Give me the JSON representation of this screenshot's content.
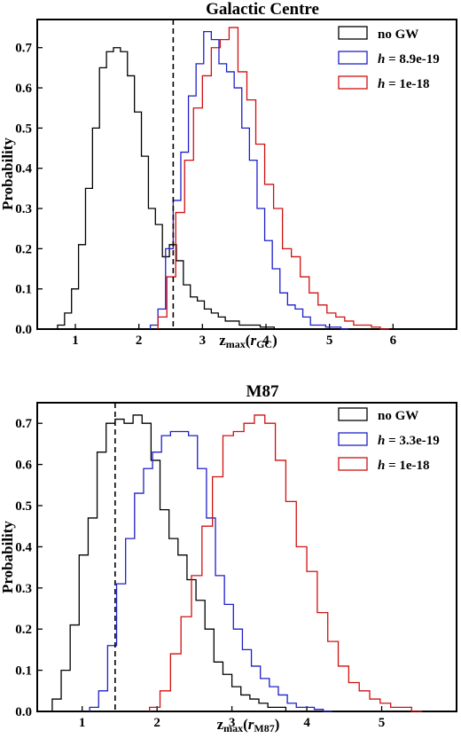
{
  "chart_data": [
    {
      "type": "histogram-step",
      "title": "Galactic Centre",
      "ylabel": "Probability",
      "xlabel_main": "z",
      "xlabel_sub": "max",
      "xlabel_arg": "r",
      "xlabel_arg_sub": "GC",
      "xlim": [
        0.4,
        7.0
      ],
      "ylim": [
        0,
        0.77
      ],
      "xticks": [
        1,
        2,
        3,
        4,
        5,
        6
      ],
      "yticks": [
        0.0,
        0.1,
        0.2,
        0.3,
        0.4,
        0.5,
        0.6,
        0.7
      ],
      "ytick_labels": [
        "0.0",
        "0.1",
        "0.2",
        "0.3",
        "0.4",
        "0.5",
        "0.6",
        "0.7"
      ],
      "vline": 2.54,
      "legend": [
        {
          "label": "no GW",
          "color": "#000000"
        },
        {
          "label_prefix": "h",
          "label_value": " = 8.9e-19",
          "color": "#1f1fc8"
        },
        {
          "label_prefix": "h",
          "label_value": " = 1e-18",
          "color": "#d01010"
        }
      ],
      "series": [
        {
          "color": "#000000",
          "edges": [
            0.72,
            0.83,
            0.94,
            1.05,
            1.16,
            1.27,
            1.38,
            1.49,
            1.6,
            1.71,
            1.82,
            1.93,
            2.04,
            2.15,
            2.26,
            2.37,
            2.48,
            2.59,
            2.7,
            2.81,
            2.92,
            3.03,
            3.14,
            3.25,
            3.36,
            3.47,
            3.58,
            3.69,
            3.8,
            3.91,
            4.02,
            4.13,
            4.24
          ],
          "values": [
            0.01,
            0.04,
            0.1,
            0.21,
            0.35,
            0.5,
            0.65,
            0.69,
            0.7,
            0.69,
            0.63,
            0.54,
            0.43,
            0.3,
            0.26,
            0.18,
            0.21,
            0.17,
            0.11,
            0.08,
            0.07,
            0.05,
            0.04,
            0.03,
            0.02,
            0.02,
            0.01,
            0.01,
            0.01,
            0.005,
            0.005,
            0.0
          ]
        },
        {
          "color": "#1f1fc8",
          "edges": [
            2.18,
            2.3,
            2.42,
            2.54,
            2.66,
            2.78,
            2.9,
            3.02,
            3.14,
            3.26,
            3.38,
            3.5,
            3.62,
            3.74,
            3.86,
            3.98,
            4.1,
            4.22,
            4.34,
            4.46,
            4.58,
            4.7,
            4.82,
            4.94,
            5.06,
            5.18,
            5.3
          ],
          "values": [
            0.01,
            0.05,
            0.2,
            0.32,
            0.44,
            0.58,
            0.66,
            0.74,
            0.72,
            0.66,
            0.64,
            0.6,
            0.5,
            0.42,
            0.3,
            0.22,
            0.15,
            0.09,
            0.06,
            0.05,
            0.03,
            0.01,
            0.01,
            0.005,
            0.005,
            0.0
          ]
        },
        {
          "color": "#d01010",
          "edges": [
            2.3,
            2.44,
            2.58,
            2.72,
            2.86,
            3.0,
            3.14,
            3.28,
            3.42,
            3.56,
            3.7,
            3.84,
            3.98,
            4.12,
            4.26,
            4.4,
            4.54,
            4.68,
            4.82,
            4.96,
            5.1,
            5.24,
            5.38,
            5.52,
            5.66,
            5.8,
            5.94
          ],
          "values": [
            0.03,
            0.13,
            0.29,
            0.42,
            0.55,
            0.63,
            0.7,
            0.72,
            0.75,
            0.64,
            0.57,
            0.46,
            0.36,
            0.3,
            0.2,
            0.18,
            0.13,
            0.09,
            0.06,
            0.04,
            0.03,
            0.02,
            0.01,
            0.01,
            0.005,
            0.0
          ]
        }
      ]
    },
    {
      "type": "histogram-step",
      "title": "M87",
      "ylabel": "Probability",
      "xlabel_main": "z",
      "xlabel_sub": "max",
      "xlabel_arg": "r",
      "xlabel_arg_sub": "M87",
      "xlim": [
        0.4,
        6.0
      ],
      "ylim": [
        0,
        0.75
      ],
      "xticks": [
        1,
        2,
        3,
        4,
        5
      ],
      "yticks": [
        0.0,
        0.1,
        0.2,
        0.3,
        0.4,
        0.5,
        0.6,
        0.7
      ],
      "ytick_labels": [
        "0.0",
        "0.1",
        "0.2",
        "0.3",
        "0.4",
        "0.5",
        "0.6",
        "0.7"
      ],
      "vline": 1.44,
      "legend": [
        {
          "label": "no GW",
          "color": "#000000"
        },
        {
          "label_prefix": "h",
          "label_value": " = 3.3e-19",
          "color": "#1f1fc8"
        },
        {
          "label_prefix": "h",
          "label_value": " = 1e-18",
          "color": "#d01010"
        }
      ],
      "series": [
        {
          "color": "#000000",
          "edges": [
            0.6,
            0.72,
            0.84,
            0.96,
            1.08,
            1.2,
            1.32,
            1.44,
            1.56,
            1.68,
            1.8,
            1.92,
            2.04,
            2.16,
            2.28,
            2.4,
            2.52,
            2.64,
            2.76,
            2.88,
            3.0,
            3.12,
            3.24,
            3.36,
            3.48,
            3.6,
            3.72,
            3.84
          ],
          "values": [
            0.03,
            0.1,
            0.21,
            0.38,
            0.47,
            0.63,
            0.7,
            0.71,
            0.7,
            0.72,
            0.7,
            0.61,
            0.49,
            0.42,
            0.38,
            0.32,
            0.27,
            0.2,
            0.12,
            0.09,
            0.06,
            0.04,
            0.03,
            0.02,
            0.01,
            0.01,
            0.0
          ]
        },
        {
          "color": "#1f1fc8",
          "edges": [
            1.1,
            1.22,
            1.34,
            1.46,
            1.58,
            1.7,
            1.82,
            1.94,
            2.06,
            2.18,
            2.3,
            2.42,
            2.54,
            2.66,
            2.78,
            2.9,
            3.02,
            3.14,
            3.26,
            3.38,
            3.5,
            3.62,
            3.74,
            3.86,
            3.98,
            4.1,
            4.22,
            4.34
          ],
          "values": [
            0.01,
            0.05,
            0.16,
            0.31,
            0.42,
            0.53,
            0.59,
            0.63,
            0.67,
            0.68,
            0.68,
            0.67,
            0.59,
            0.47,
            0.33,
            0.26,
            0.2,
            0.15,
            0.11,
            0.08,
            0.06,
            0.04,
            0.02,
            0.01,
            0.01,
            0.005,
            0.0
          ]
        },
        {
          "color": "#d01010",
          "edges": [
            1.9,
            2.04,
            2.18,
            2.32,
            2.46,
            2.6,
            2.74,
            2.88,
            3.02,
            3.16,
            3.3,
            3.44,
            3.58,
            3.72,
            3.86,
            4.0,
            4.14,
            4.28,
            4.42,
            4.56,
            4.7,
            4.84,
            4.98,
            5.12,
            5.26,
            5.4,
            5.54
          ],
          "values": [
            0.01,
            0.05,
            0.14,
            0.23,
            0.33,
            0.45,
            0.57,
            0.67,
            0.68,
            0.7,
            0.72,
            0.7,
            0.61,
            0.51,
            0.4,
            0.34,
            0.24,
            0.17,
            0.11,
            0.07,
            0.05,
            0.03,
            0.02,
            0.01,
            0.01,
            0.0
          ]
        }
      ]
    }
  ]
}
